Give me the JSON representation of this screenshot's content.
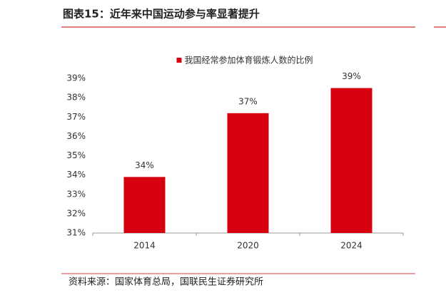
{
  "header": {
    "title": "图表15：近年来中国运动参与率显著提升"
  },
  "chart_data": {
    "type": "bar",
    "categories": [
      "2014",
      "2020",
      "2024"
    ],
    "series": [
      {
        "name": "我国经常参加体育锻炼人数的比例",
        "color": "#d7000f",
        "values": [
          33.9,
          37.2,
          38.5
        ],
        "value_labels": [
          "34%",
          "37%",
          "39%"
        ]
      }
    ],
    "ylim": [
      31,
      39
    ],
    "yticks": [
      {
        "value": 31,
        "label": "31%"
      },
      {
        "value": 32,
        "label": "32%"
      },
      {
        "value": 33,
        "label": "33%"
      },
      {
        "value": 34,
        "label": "34%"
      },
      {
        "value": 35,
        "label": "35%"
      },
      {
        "value": 36,
        "label": "36%"
      },
      {
        "value": 37,
        "label": "37%"
      },
      {
        "value": 38,
        "label": "38%"
      },
      {
        "value": 39,
        "label": "39%"
      }
    ],
    "legend": "top"
  },
  "footer": {
    "source": "资料来源：国家体育总局，国联民生证券研究所"
  }
}
